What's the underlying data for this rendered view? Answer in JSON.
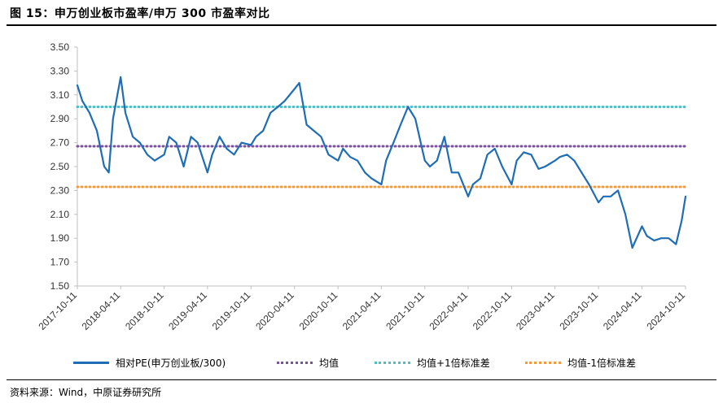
{
  "title": "图 15：申万创业板市盈率/申万 300 市盈率对比",
  "source": "资料来源：Wind，中原证券研究所",
  "colors": {
    "series": "#1f6db5",
    "mean": "#7b519d",
    "plus1": "#4bc0c8",
    "minus1": "#f59a3c",
    "axis": "#bfbfbf"
  },
  "legend": [
    {
      "label": "相对PE(申万创业板/300)",
      "style": "solid",
      "color": "#1f6db5"
    },
    {
      "label": "均值",
      "style": "dotted",
      "color": "#7b519d"
    },
    {
      "label": "均值+1倍标准差",
      "style": "dotted",
      "color": "#4bc0c8"
    },
    {
      "label": "均值-1倍标准差",
      "style": "dotted",
      "color": "#f59a3c"
    }
  ],
  "chart_data": {
    "type": "line",
    "xlabel": "",
    "ylabel": "",
    "ylim": [
      1.5,
      3.5
    ],
    "yticks": [
      "1.50",
      "1.70",
      "1.90",
      "2.10",
      "2.30",
      "2.50",
      "2.70",
      "2.90",
      "3.10",
      "3.30",
      "3.50"
    ],
    "xticks": [
      "2017-10-11",
      "2018-04-11",
      "2018-10-11",
      "2019-04-11",
      "2019-10-11",
      "2020-04-11",
      "2020-10-11",
      "2021-04-11",
      "2021-10-11",
      "2022-04-11",
      "2022-10-11",
      "2023-04-11",
      "2023-10-11",
      "2024-04-11",
      "2024-10-11"
    ],
    "reference_lines": [
      {
        "name": "均值",
        "value": 2.67
      },
      {
        "name": "均值+1倍标准差",
        "value": 3.0
      },
      {
        "name": "均值-1倍标准差",
        "value": 2.33
      }
    ],
    "series": [
      {
        "name": "相对PE(申万创业板/300)",
        "x": [
          "2017-10-11",
          "2017-11-01",
          "2017-12-01",
          "2018-01-01",
          "2018-02-01",
          "2018-02-20",
          "2018-03-10",
          "2018-04-11",
          "2018-05-01",
          "2018-06-01",
          "2018-07-01",
          "2018-08-01",
          "2018-09-01",
          "2018-10-11",
          "2018-11-01",
          "2018-12-01",
          "2019-01-01",
          "2019-02-01",
          "2019-03-01",
          "2019-04-11",
          "2019-05-01",
          "2019-06-01",
          "2019-07-01",
          "2019-08-01",
          "2019-09-01",
          "2019-10-11",
          "2019-11-01",
          "2019-12-01",
          "2020-01-01",
          "2020-02-01",
          "2020-03-01",
          "2020-04-11",
          "2020-05-01",
          "2020-06-01",
          "2020-07-01",
          "2020-08-01",
          "2020-09-01",
          "2020-10-11",
          "2020-11-01",
          "2020-12-01",
          "2021-01-01",
          "2021-02-01",
          "2021-03-01",
          "2021-04-11",
          "2021-05-01",
          "2021-06-01",
          "2021-07-01",
          "2021-08-01",
          "2021-09-01",
          "2021-10-11",
          "2021-11-01",
          "2021-12-01",
          "2022-01-01",
          "2022-02-01",
          "2022-03-01",
          "2022-04-11",
          "2022-05-01",
          "2022-06-01",
          "2022-07-01",
          "2022-08-01",
          "2022-09-01",
          "2022-10-11",
          "2022-11-01",
          "2022-12-01",
          "2023-01-01",
          "2023-02-01",
          "2023-03-01",
          "2023-04-11",
          "2023-05-01",
          "2023-06-01",
          "2023-07-01",
          "2023-08-01",
          "2023-09-01",
          "2023-10-11",
          "2023-11-01",
          "2023-12-01",
          "2024-01-01",
          "2024-02-01",
          "2024-03-01",
          "2024-04-11",
          "2024-05-01",
          "2024-06-01",
          "2024-07-01",
          "2024-08-01",
          "2024-09-01",
          "2024-09-25",
          "2024-10-11"
        ],
        "values": [
          3.18,
          3.05,
          2.95,
          2.8,
          2.5,
          2.45,
          2.9,
          3.25,
          2.95,
          2.75,
          2.7,
          2.6,
          2.55,
          2.6,
          2.75,
          2.7,
          2.5,
          2.75,
          2.7,
          2.45,
          2.6,
          2.75,
          2.65,
          2.6,
          2.7,
          2.68,
          2.75,
          2.8,
          2.95,
          3.0,
          3.05,
          3.15,
          3.2,
          2.85,
          2.8,
          2.75,
          2.6,
          2.55,
          2.65,
          2.58,
          2.55,
          2.45,
          2.4,
          2.35,
          2.55,
          2.7,
          2.85,
          3.0,
          2.9,
          2.55,
          2.5,
          2.55,
          2.75,
          2.45,
          2.45,
          2.25,
          2.35,
          2.4,
          2.6,
          2.65,
          2.5,
          2.35,
          2.55,
          2.62,
          2.6,
          2.48,
          2.5,
          2.55,
          2.58,
          2.6,
          2.55,
          2.45,
          2.35,
          2.2,
          2.25,
          2.25,
          2.3,
          2.1,
          1.82,
          2.0,
          1.92,
          1.88,
          1.9,
          1.9,
          1.85,
          2.05,
          2.25
        ]
      }
    ]
  }
}
